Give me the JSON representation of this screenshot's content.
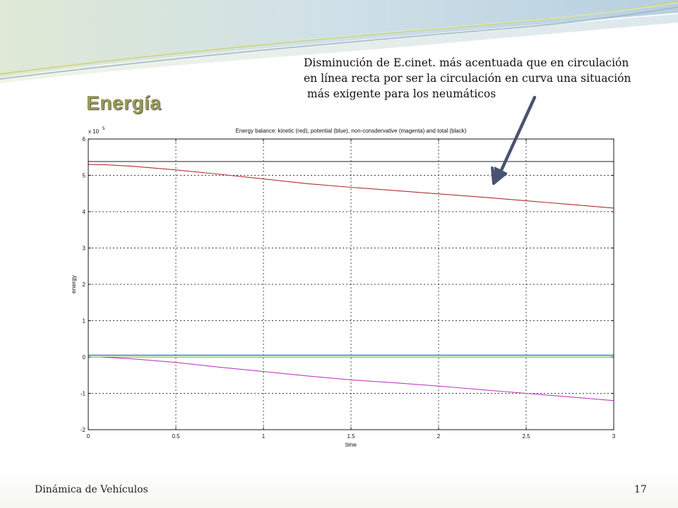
{
  "slide": {
    "title": "Energía",
    "annotation_lines": [
      "Disminución de E.cinet. más acentuada que en circulación",
      "en línea recta por ser la circulación en curva una situación",
      " más exigente para los neumáticos"
    ],
    "footer_left": "Dinámica de Vehículos",
    "page_number": "17",
    "colors": {
      "title": "#9a9a58",
      "arrow": "#4a5270"
    }
  },
  "chart_data": {
    "type": "line",
    "title": "Energy balance: kinetic (red), potential (blue), non-consdervative (magenta) and total (black)",
    "xlabel": "time",
    "ylabel": "energy",
    "y_multiplier": "x 10",
    "y_exponent": "5",
    "xlim": [
      0,
      3
    ],
    "ylim": [
      -2,
      6
    ],
    "x_ticks": [
      "0",
      "0.5",
      "1",
      "1.5",
      "2",
      "2.5",
      "3"
    ],
    "y_ticks": [
      "-2",
      "-1",
      "0",
      "1",
      "2",
      "3",
      "4",
      "5",
      "6"
    ],
    "grid": true,
    "series": [
      {
        "name": "total",
        "color": "#3a3a3a",
        "x": [
          0,
          3
        ],
        "y": [
          5.38,
          5.38
        ]
      },
      {
        "name": "kinetic",
        "color": "#b03030",
        "x": [
          0,
          0.1,
          0.25,
          0.5,
          0.75,
          1,
          1.25,
          1.5,
          1.75,
          2,
          2.25,
          2.5,
          2.75,
          3
        ],
        "y": [
          5.3,
          5.29,
          5.25,
          5.15,
          5.03,
          4.9,
          4.77,
          4.67,
          4.58,
          4.49,
          4.4,
          4.3,
          4.2,
          4.1
        ]
      },
      {
        "name": "potential",
        "color": "#3050c0",
        "x": [
          0,
          3
        ],
        "y": [
          0.05,
          0.05
        ]
      },
      {
        "name": "green",
        "color": "#30b030",
        "x": [
          0,
          3
        ],
        "y": [
          0.0,
          0.0
        ]
      },
      {
        "name": "non-conservative",
        "color": "#c040c0",
        "x": [
          0.07,
          0.25,
          0.5,
          0.75,
          1,
          1.25,
          1.5,
          1.75,
          2,
          2.25,
          2.5,
          2.75,
          3
        ],
        "y": [
          0.0,
          -0.05,
          -0.15,
          -0.28,
          -0.4,
          -0.52,
          -0.63,
          -0.71,
          -0.8,
          -0.9,
          -1.0,
          -1.1,
          -1.2
        ]
      }
    ]
  }
}
